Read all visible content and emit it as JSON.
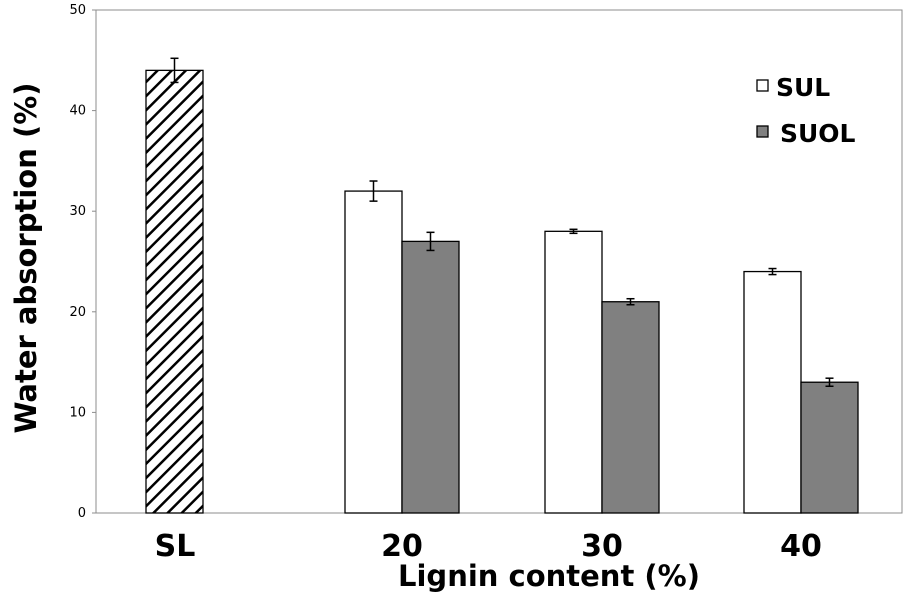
{
  "chart_data": {
    "type": "bar",
    "categories": [
      "SL",
      "20",
      "30",
      "40"
    ],
    "series": [
      {
        "name": "",
        "pattern": "hatched",
        "values": [
          44,
          null,
          null,
          null
        ],
        "errors": [
          1.2,
          null,
          null,
          null
        ]
      },
      {
        "name": "SUL",
        "color": "#ffffff",
        "values": [
          null,
          32,
          28,
          24
        ],
        "errors": [
          null,
          1.0,
          0.2,
          0.3
        ]
      },
      {
        "name": "SUOL",
        "color": "#808080",
        "values": [
          null,
          27,
          21,
          13
        ],
        "errors": [
          null,
          0.9,
          0.3,
          0.4
        ]
      }
    ],
    "xlabel": "Lignin content (%)",
    "ylabel": "Water absorption (%)",
    "ylim": [
      0,
      50
    ],
    "yticks": [
      "0",
      "10",
      "20",
      "30",
      "40",
      "50"
    ],
    "grid": false,
    "legend_position": "top-right"
  }
}
